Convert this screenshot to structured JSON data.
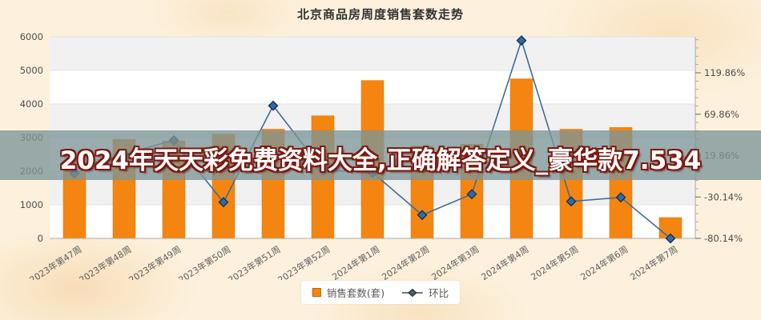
{
  "title": "北京商品房周度销售套数走势",
  "banner": {
    "text": "2024年天天彩免费资料大全,正确解答定义_豪华款7.534"
  },
  "legend": {
    "items": [
      {
        "label": "销售套数(套)",
        "type": "bar"
      },
      {
        "label": "环比",
        "type": "line"
      }
    ]
  },
  "colors": {
    "bar": "#F58511",
    "bar_edge": "#DB7300",
    "line": "#3E6D9E",
    "marker_fill": "#2F6BAA",
    "marker_edge": "#16324F",
    "banner_bg": "rgba(124,149,151,0.78)",
    "banner_text": "#FFFFFF",
    "banner_outline": "#7B1A12",
    "background": "#FDF1DD",
    "plot_stripe": "#F1F1F1",
    "gridline": "#E3E3E3",
    "axis_line": "#A9A9A9",
    "axis_text": "#4D4D4D"
  },
  "chart_data": {
    "type": "bar+line",
    "title": "北京商品房周度销售套数走势",
    "categories": [
      "2023年第47周",
      "2023年第48周",
      "2023年第49周",
      "2023年第50周",
      "2023年第51周",
      "2023年第52周",
      "2024年第1周",
      "2024年第2周",
      "2024年第3周",
      "2024年第4周",
      "2024年第5周",
      "2024年第6周",
      "2024年第7周"
    ],
    "series": [
      {
        "name": "销售套数(套)",
        "type": "bar",
        "axis": "left",
        "values": [
          2000,
          2950,
          2900,
          3100,
          3250,
          3650,
          4700,
          2750,
          2800,
          4750,
          3250,
          3300,
          620
        ]
      },
      {
        "name": "环比",
        "type": "line",
        "axis": "right",
        "values_pct": [
          -1.5,
          21.9,
          38.3,
          -36.4,
          80.1,
          2.4,
          -0.5,
          -51.9,
          -26.7,
          158.9,
          -35.5,
          -30.6,
          -80.14
        ]
      }
    ],
    "left_axis": {
      "min": 0,
      "max": 6000,
      "ticks": [
        0,
        1000,
        2000,
        3000,
        4000,
        5000,
        6000
      ]
    },
    "right_axis": {
      "min": -80.14,
      "max": 163,
      "minor_step": 10,
      "tick_values": [
        119.86,
        69.86,
        19.86,
        -30.14,
        -80.14
      ],
      "labels": [
        "119.86%",
        "69.86%",
        "19.86%",
        "-30.14%",
        "-80.14%"
      ]
    },
    "legend_position": "bottom",
    "grid": true,
    "striped_background": true
  }
}
